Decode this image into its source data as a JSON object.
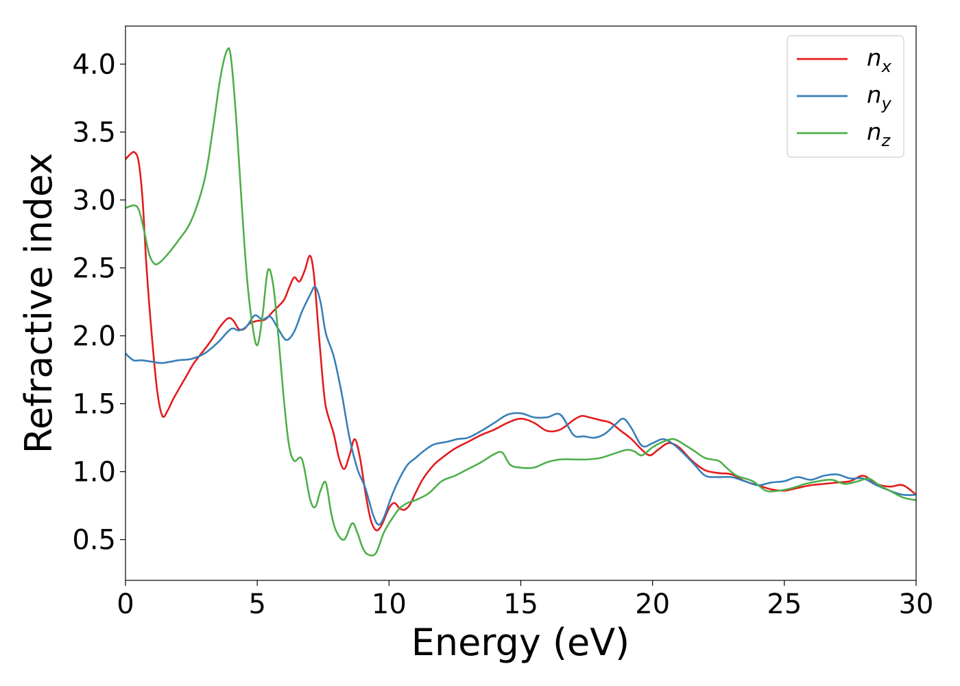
{
  "chart_data": {
    "type": "line",
    "xlabel": "Energy (eV)",
    "ylabel": "Refractive index",
    "xlim": [
      0,
      30
    ],
    "ylim": [
      0.2,
      4.28
    ],
    "x_ticks": [
      0,
      5,
      10,
      15,
      20,
      25,
      30
    ],
    "y_ticks": [
      0.5,
      1.0,
      1.5,
      2.0,
      2.5,
      3.0,
      3.5,
      4.0
    ],
    "x_tick_labels": [
      "0",
      "5",
      "10",
      "15",
      "20",
      "25",
      "30"
    ],
    "y_tick_labels": [
      "0.5",
      "1.0",
      "1.5",
      "2.0",
      "2.5",
      "3.0",
      "3.5",
      "4.0"
    ],
    "grid": false,
    "legend_position": "top-right",
    "series": [
      {
        "name": "n_x",
        "label_base": "n",
        "label_sub": "x",
        "color": "#e41a1c",
        "points": [
          [
            0,
            3.3
          ],
          [
            0.2,
            3.34
          ],
          [
            0.35,
            3.35
          ],
          [
            0.5,
            3.28
          ],
          [
            0.65,
            3.0
          ],
          [
            0.8,
            2.5
          ],
          [
            1.0,
            2.0
          ],
          [
            1.2,
            1.6
          ],
          [
            1.4,
            1.41
          ],
          [
            1.6,
            1.45
          ],
          [
            1.8,
            1.53
          ],
          [
            2.0,
            1.6
          ],
          [
            2.3,
            1.7
          ],
          [
            2.6,
            1.8
          ],
          [
            3.0,
            1.9
          ],
          [
            3.3,
            1.98
          ],
          [
            3.6,
            2.07
          ],
          [
            3.9,
            2.13
          ],
          [
            4.1,
            2.11
          ],
          [
            4.3,
            2.05
          ],
          [
            4.5,
            2.05
          ],
          [
            4.7,
            2.09
          ],
          [
            5.0,
            2.11
          ],
          [
            5.3,
            2.12
          ],
          [
            5.6,
            2.18
          ],
          [
            6.0,
            2.26
          ],
          [
            6.2,
            2.35
          ],
          [
            6.4,
            2.43
          ],
          [
            6.6,
            2.4
          ],
          [
            6.8,
            2.48
          ],
          [
            7.0,
            2.59
          ],
          [
            7.15,
            2.45
          ],
          [
            7.3,
            2.1
          ],
          [
            7.45,
            1.75
          ],
          [
            7.6,
            1.48
          ],
          [
            7.9,
            1.28
          ],
          [
            8.1,
            1.1
          ],
          [
            8.3,
            1.02
          ],
          [
            8.5,
            1.12
          ],
          [
            8.7,
            1.24
          ],
          [
            8.9,
            1.1
          ],
          [
            9.1,
            0.85
          ],
          [
            9.3,
            0.65
          ],
          [
            9.5,
            0.57
          ],
          [
            9.7,
            0.6
          ],
          [
            10.0,
            0.73
          ],
          [
            10.2,
            0.77
          ],
          [
            10.4,
            0.73
          ],
          [
            10.6,
            0.72
          ],
          [
            10.8,
            0.76
          ],
          [
            11.0,
            0.84
          ],
          [
            11.3,
            0.95
          ],
          [
            11.7,
            1.05
          ],
          [
            12.0,
            1.1
          ],
          [
            12.5,
            1.17
          ],
          [
            13.0,
            1.22
          ],
          [
            13.5,
            1.27
          ],
          [
            14.0,
            1.31
          ],
          [
            14.5,
            1.36
          ],
          [
            15.0,
            1.39
          ],
          [
            15.5,
            1.36
          ],
          [
            16.0,
            1.3
          ],
          [
            16.5,
            1.31
          ],
          [
            17.0,
            1.38
          ],
          [
            17.3,
            1.41
          ],
          [
            17.6,
            1.4
          ],
          [
            18.0,
            1.38
          ],
          [
            18.4,
            1.36
          ],
          [
            18.8,
            1.3
          ],
          [
            19.2,
            1.24
          ],
          [
            19.6,
            1.16
          ],
          [
            19.9,
            1.12
          ],
          [
            20.2,
            1.16
          ],
          [
            20.6,
            1.21
          ],
          [
            21.0,
            1.18
          ],
          [
            21.5,
            1.08
          ],
          [
            22.0,
            1.01
          ],
          [
            22.5,
            0.99
          ],
          [
            23.0,
            0.98
          ],
          [
            23.5,
            0.93
          ],
          [
            24.0,
            0.9
          ],
          [
            24.5,
            0.87
          ],
          [
            25.0,
            0.86
          ],
          [
            25.5,
            0.88
          ],
          [
            26.0,
            0.9
          ],
          [
            26.5,
            0.91
          ],
          [
            27.0,
            0.92
          ],
          [
            27.5,
            0.93
          ],
          [
            28.0,
            0.97
          ],
          [
            28.5,
            0.91
          ],
          [
            29.0,
            0.89
          ],
          [
            29.5,
            0.9
          ],
          [
            30.0,
            0.83
          ]
        ]
      },
      {
        "name": "n_y",
        "label_base": "n",
        "label_sub": "y",
        "color": "#377eb8",
        "points": [
          [
            0,
            1.87
          ],
          [
            0.3,
            1.82
          ],
          [
            0.6,
            1.82
          ],
          [
            1.0,
            1.81
          ],
          [
            1.4,
            1.8
          ],
          [
            2.0,
            1.82
          ],
          [
            2.5,
            1.83
          ],
          [
            3.0,
            1.87
          ],
          [
            3.5,
            1.95
          ],
          [
            4.0,
            2.05
          ],
          [
            4.3,
            2.04
          ],
          [
            4.6,
            2.07
          ],
          [
            4.9,
            2.15
          ],
          [
            5.2,
            2.12
          ],
          [
            5.5,
            2.14
          ],
          [
            5.8,
            2.05
          ],
          [
            6.1,
            1.97
          ],
          [
            6.4,
            2.03
          ],
          [
            6.7,
            2.18
          ],
          [
            7.0,
            2.3
          ],
          [
            7.2,
            2.36
          ],
          [
            7.4,
            2.25
          ],
          [
            7.6,
            2.02
          ],
          [
            7.9,
            1.85
          ],
          [
            8.2,
            1.58
          ],
          [
            8.5,
            1.25
          ],
          [
            8.8,
            1.02
          ],
          [
            9.1,
            0.88
          ],
          [
            9.4,
            0.68
          ],
          [
            9.6,
            0.61
          ],
          [
            9.8,
            0.66
          ],
          [
            10.1,
            0.82
          ],
          [
            10.4,
            0.95
          ],
          [
            10.7,
            1.05
          ],
          [
            11.0,
            1.1
          ],
          [
            11.3,
            1.15
          ],
          [
            11.7,
            1.2
          ],
          [
            12.2,
            1.22
          ],
          [
            12.6,
            1.24
          ],
          [
            13.0,
            1.25
          ],
          [
            13.5,
            1.3
          ],
          [
            14.0,
            1.36
          ],
          [
            14.5,
            1.42
          ],
          [
            15.0,
            1.43
          ],
          [
            15.5,
            1.4
          ],
          [
            16.0,
            1.4
          ],
          [
            16.5,
            1.42
          ],
          [
            17.0,
            1.27
          ],
          [
            17.4,
            1.26
          ],
          [
            17.8,
            1.25
          ],
          [
            18.2,
            1.28
          ],
          [
            18.6,
            1.35
          ],
          [
            18.9,
            1.39
          ],
          [
            19.2,
            1.32
          ],
          [
            19.6,
            1.19
          ],
          [
            20.0,
            1.21
          ],
          [
            20.4,
            1.24
          ],
          [
            20.8,
            1.2
          ],
          [
            21.2,
            1.13
          ],
          [
            21.6,
            1.05
          ],
          [
            22.0,
            0.97
          ],
          [
            22.5,
            0.96
          ],
          [
            23.0,
            0.96
          ],
          [
            23.5,
            0.93
          ],
          [
            24.0,
            0.9
          ],
          [
            24.5,
            0.92
          ],
          [
            25.0,
            0.93
          ],
          [
            25.5,
            0.96
          ],
          [
            26.0,
            0.94
          ],
          [
            26.5,
            0.97
          ],
          [
            27.0,
            0.98
          ],
          [
            27.5,
            0.95
          ],
          [
            28.0,
            0.95
          ],
          [
            28.5,
            0.9
          ],
          [
            29.0,
            0.86
          ],
          [
            29.5,
            0.83
          ],
          [
            30.0,
            0.83
          ]
        ]
      },
      {
        "name": "n_z",
        "label_base": "n",
        "label_sub": "z",
        "color": "#4daf4a",
        "points": [
          [
            0,
            2.94
          ],
          [
            0.3,
            2.96
          ],
          [
            0.5,
            2.93
          ],
          [
            0.7,
            2.78
          ],
          [
            0.9,
            2.6
          ],
          [
            1.1,
            2.53
          ],
          [
            1.3,
            2.54
          ],
          [
            1.6,
            2.6
          ],
          [
            2.0,
            2.7
          ],
          [
            2.5,
            2.85
          ],
          [
            3.0,
            3.15
          ],
          [
            3.3,
            3.5
          ],
          [
            3.6,
            3.9
          ],
          [
            3.85,
            4.1
          ],
          [
            4.0,
            4.05
          ],
          [
            4.2,
            3.6
          ],
          [
            4.4,
            3.0
          ],
          [
            4.6,
            2.45
          ],
          [
            4.8,
            2.1
          ],
          [
            5.0,
            1.93
          ],
          [
            5.2,
            2.15
          ],
          [
            5.4,
            2.48
          ],
          [
            5.6,
            2.38
          ],
          [
            5.8,
            2.0
          ],
          [
            6.0,
            1.55
          ],
          [
            6.2,
            1.2
          ],
          [
            6.4,
            1.08
          ],
          [
            6.7,
            1.09
          ],
          [
            7.0,
            0.8
          ],
          [
            7.2,
            0.74
          ],
          [
            7.4,
            0.86
          ],
          [
            7.6,
            0.92
          ],
          [
            7.8,
            0.7
          ],
          [
            8.0,
            0.56
          ],
          [
            8.3,
            0.5
          ],
          [
            8.6,
            0.62
          ],
          [
            8.8,
            0.55
          ],
          [
            9.0,
            0.44
          ],
          [
            9.2,
            0.39
          ],
          [
            9.5,
            0.4
          ],
          [
            9.8,
            0.55
          ],
          [
            10.1,
            0.65
          ],
          [
            10.4,
            0.73
          ],
          [
            10.7,
            0.77
          ],
          [
            11.0,
            0.79
          ],
          [
            11.5,
            0.84
          ],
          [
            12.0,
            0.93
          ],
          [
            12.5,
            0.97
          ],
          [
            13.0,
            1.02
          ],
          [
            13.5,
            1.07
          ],
          [
            14.0,
            1.13
          ],
          [
            14.3,
            1.14
          ],
          [
            14.6,
            1.05
          ],
          [
            15.0,
            1.03
          ],
          [
            15.5,
            1.03
          ],
          [
            16.0,
            1.07
          ],
          [
            16.5,
            1.09
          ],
          [
            17.0,
            1.09
          ],
          [
            17.5,
            1.09
          ],
          [
            18.0,
            1.1
          ],
          [
            18.5,
            1.13
          ],
          [
            19.0,
            1.16
          ],
          [
            19.3,
            1.15
          ],
          [
            19.6,
            1.12
          ],
          [
            20.0,
            1.18
          ],
          [
            20.4,
            1.22
          ],
          [
            20.8,
            1.24
          ],
          [
            21.2,
            1.2
          ],
          [
            21.6,
            1.15
          ],
          [
            22.0,
            1.1
          ],
          [
            22.5,
            1.08
          ],
          [
            22.8,
            1.03
          ],
          [
            23.2,
            0.97
          ],
          [
            23.8,
            0.93
          ],
          [
            24.3,
            0.86
          ],
          [
            24.8,
            0.86
          ],
          [
            25.3,
            0.88
          ],
          [
            25.8,
            0.91
          ],
          [
            26.3,
            0.93
          ],
          [
            26.8,
            0.94
          ],
          [
            27.3,
            0.91
          ],
          [
            27.8,
            0.93
          ],
          [
            28.2,
            0.95
          ],
          [
            28.6,
            0.9
          ],
          [
            29.0,
            0.86
          ],
          [
            29.5,
            0.81
          ],
          [
            30.0,
            0.79
          ]
        ]
      }
    ]
  }
}
